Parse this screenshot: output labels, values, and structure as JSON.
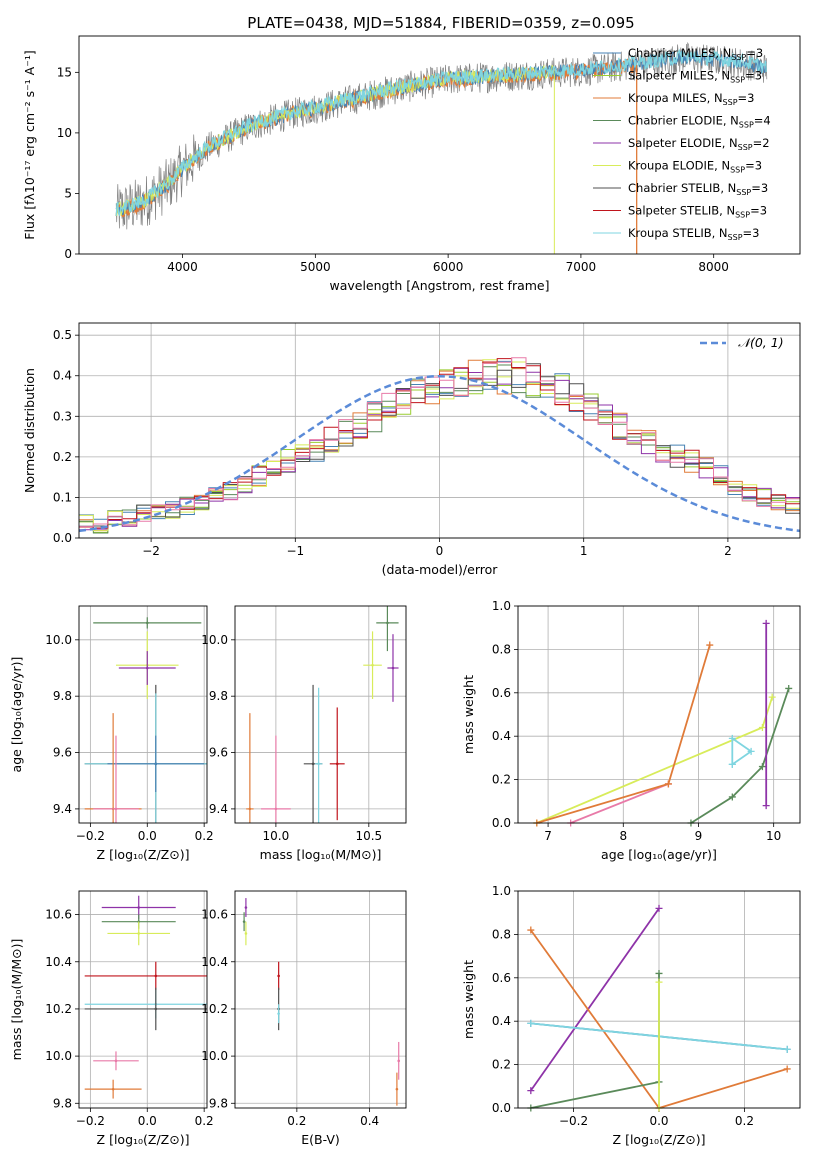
{
  "title": "PLATE=0438, MJD=51884, FIBERID=0359, z=0.095",
  "colors": {
    "chabrier_miles": "#4682b4",
    "salpeter_miles": "#9acd32",
    "kroupa_miles": "#e07b39",
    "chabrier_elodie": "#5a8a5a",
    "salpeter_elodie": "#8e33a8",
    "kroupa_elodie": "#d8ec5a",
    "chabrier_stelib": "#505050",
    "salpeter_stelib": "#c0141c",
    "kroupa_stelib": "#7fd5e0",
    "pink": "#e87aa8",
    "gray_data": "#808080",
    "normal": "#5b8bd8"
  },
  "chart_data": [
    {
      "id": "spectrum",
      "type": "line",
      "xlabel": "wavelength [Angstrom, rest frame]",
      "ylabel": "Flux [fλ10⁻¹⁷ erg cm⁻² s⁻¹ A⁻¹]",
      "xlim": [
        3220,
        8650
      ],
      "ylim": [
        0,
        18
      ],
      "xticks": [
        4000,
        5000,
        6000,
        7000,
        8000
      ],
      "yticks": [
        0,
        5,
        10,
        15
      ],
      "grid": false,
      "legend_position": "right",
      "legend": [
        {
          "label": "Chabrier MILES, N",
          "sub": "SSP",
          "suffix": "=3",
          "color_key": "chabrier_miles"
        },
        {
          "label": "Salpeter MILES, N",
          "sub": "SSP",
          "suffix": "=3",
          "color_key": "salpeter_miles"
        },
        {
          "label": "Kroupa MILES, N",
          "sub": "SSP",
          "suffix": "=3",
          "color_key": "kroupa_miles"
        },
        {
          "label": "Chabrier ELODIE, N",
          "sub": "SSP",
          "suffix": "=4",
          "color_key": "chabrier_elodie"
        },
        {
          "label": "Salpeter ELODIE, N",
          "sub": "SSP",
          "suffix": "=2",
          "color_key": "salpeter_elodie"
        },
        {
          "label": "Kroupa ELODIE, N",
          "sub": "SSP",
          "suffix": "=3",
          "color_key": "kroupa_elodie"
        },
        {
          "label": "Chabrier STELIB, N",
          "sub": "SSP",
          "suffix": "=3",
          "color_key": "chabrier_stelib"
        },
        {
          "label": "Salpeter STELIB, N",
          "sub": "SSP",
          "suffix": "=3",
          "color_key": "salpeter_stelib"
        },
        {
          "label": "Kroupa STELIB, N",
          "sub": "SSP",
          "suffix": "=3",
          "color_key": "kroupa_stelib"
        }
      ],
      "continuum": [
        [
          3500,
          3.5
        ],
        [
          3700,
          4.2
        ],
        [
          3900,
          5.8
        ],
        [
          4000,
          7.0
        ],
        [
          4200,
          8.8
        ],
        [
          4500,
          10.5
        ],
        [
          4800,
          11.5
        ],
        [
          5000,
          12.0
        ],
        [
          5300,
          12.8
        ],
        [
          5600,
          13.6
        ],
        [
          6000,
          14.4
        ],
        [
          6300,
          14.6
        ],
        [
          6600,
          14.8
        ],
        [
          7000,
          15.1
        ],
        [
          7400,
          15.6
        ],
        [
          7800,
          16.2
        ],
        [
          8200,
          15.8
        ],
        [
          8400,
          15.3
        ]
      ]
    },
    {
      "id": "residuals",
      "type": "step",
      "xlabel": "(data-model)/error",
      "ylabel": "Normed distribution",
      "xlim": [
        -2.5,
        2.5
      ],
      "ylim": [
        0,
        0.53
      ],
      "xticks": [
        -2,
        -1,
        0,
        1,
        2
      ],
      "xticklabels": [
        "−2",
        "−1",
        "0",
        "1",
        "2"
      ],
      "yticks": [
        0.0,
        0.1,
        0.2,
        0.3,
        0.4,
        0.5
      ],
      "grid": true,
      "legend_position": "top-right",
      "normal_label": "𝒩(0, 1)",
      "bin_width": 0.1,
      "bin_start": -2.5,
      "base_values": [
        0.04,
        0.03,
        0.05,
        0.05,
        0.06,
        0.06,
        0.07,
        0.08,
        0.09,
        0.1,
        0.12,
        0.13,
        0.15,
        0.17,
        0.19,
        0.2,
        0.22,
        0.24,
        0.26,
        0.28,
        0.3,
        0.32,
        0.33,
        0.35,
        0.37,
        0.38,
        0.39,
        0.4,
        0.41,
        0.4,
        0.4,
        0.39,
        0.38,
        0.37,
        0.35,
        0.32,
        0.3,
        0.28,
        0.26,
        0.24,
        0.22,
        0.2,
        0.19,
        0.17,
        0.15,
        0.13,
        0.11,
        0.1,
        0.09,
        0.08,
        0.07,
        0.06,
        0.06,
        0.05,
        0.05,
        0.04,
        0.04,
        0.03,
        0.03,
        0.03
      ]
    },
    {
      "id": "age_vs_Z",
      "type": "errorbar",
      "xlabel": "Z [log₁₀(Z/Z⊙)]",
      "ylabel": "age  [log₁₀(age/yr)]",
      "xlim": [
        -0.24,
        0.21
      ],
      "ylim": [
        9.35,
        10.12
      ],
      "xticks": [
        -0.2,
        0.0,
        0.2
      ],
      "xticklabels": [
        "−0.2",
        "0.0",
        "0.2"
      ],
      "yticks": [
        9.4,
        9.6,
        9.8,
        10.0
      ],
      "grid": true,
      "points": [
        {
          "c": "chabrier_elodie",
          "x": 0.0,
          "y": 10.06,
          "xe": 0.19,
          "ye": 0.02
        },
        {
          "c": "kroupa_elodie",
          "x": 0.0,
          "y": 9.91,
          "xe": 0.11,
          "ye": 0.12
        },
        {
          "c": "salpeter_elodie",
          "x": 0.0,
          "y": 9.9,
          "xe": 0.1,
          "ye": 0.06
        },
        {
          "c": "chabrier_stelib",
          "x": 0.03,
          "y": 9.56,
          "xe": 0.25,
          "ye": 0.28
        },
        {
          "c": "kroupa_stelib",
          "x": 0.03,
          "y": 9.56,
          "xe": 0.25,
          "ye": 0.25
        },
        {
          "c": "chabrier_miles",
          "x": 0.03,
          "y": 9.56,
          "xe": 0.17,
          "ye": 0.1
        },
        {
          "c": "kroupa_miles",
          "x": -0.12,
          "y": 9.4,
          "xe": 0.1,
          "ye": 0.34
        },
        {
          "c": "pink",
          "x": -0.11,
          "y": 9.4,
          "xe": 0.08,
          "ye": 0.26
        }
      ]
    },
    {
      "id": "age_vs_mass",
      "type": "errorbar",
      "xlabel": "mass [log₁₀(M/M⊙)]",
      "xlim": [
        9.78,
        10.7
      ],
      "ylim": [
        9.35,
        10.12
      ],
      "xticks": [
        10.0,
        10.5
      ],
      "xticklabels": [
        "10.0",
        "10.5"
      ],
      "yticks": [
        9.4,
        9.6,
        9.8,
        10.0
      ],
      "grid": true,
      "points": [
        {
          "c": "chabrier_elodie",
          "x": 10.6,
          "y": 10.06,
          "xe": 0.06,
          "ye": 0.1
        },
        {
          "c": "kroupa_elodie",
          "x": 10.52,
          "y": 9.91,
          "xe": 0.05,
          "ye": 0.12
        },
        {
          "c": "salpeter_elodie",
          "x": 10.63,
          "y": 9.9,
          "xe": 0.03,
          "ye": 0.12
        },
        {
          "c": "chabrier_stelib",
          "x": 10.2,
          "y": 9.56,
          "xe": 0.05,
          "ye": 0.28
        },
        {
          "c": "kroupa_stelib",
          "x": 10.23,
          "y": 9.56,
          "xe": 0.02,
          "ye": 0.27
        },
        {
          "c": "salpeter_stelib",
          "x": 10.33,
          "y": 9.56,
          "xe": 0.04,
          "ye": 0.2
        },
        {
          "c": "kroupa_miles",
          "x": 9.86,
          "y": 9.4,
          "xe": 0.02,
          "ye": 0.34
        },
        {
          "c": "pink",
          "x": 10.0,
          "y": 9.4,
          "xe": 0.08,
          "ye": 0.26
        }
      ]
    },
    {
      "id": "massweight_vs_age",
      "type": "line",
      "xlabel": "age  [log₁₀(age/yr)]",
      "ylabel": "mass weight",
      "xlim": [
        6.6,
        10.35
      ],
      "ylim": [
        0,
        1
      ],
      "xticks": [
        7,
        8,
        9,
        10
      ],
      "yticks": [
        0.0,
        0.2,
        0.4,
        0.6,
        0.8,
        1.0
      ],
      "grid": true,
      "series": [
        {
          "c": "chabrier_elodie",
          "pts": [
            [
              8.9,
              0.0
            ],
            [
              9.45,
              0.12
            ],
            [
              9.85,
              0.26
            ],
            [
              10.2,
              0.62
            ]
          ]
        },
        {
          "c": "kroupa_elodie",
          "pts": [
            [
              6.85,
              0.0
            ],
            [
              9.85,
              0.44
            ],
            [
              9.98,
              0.58
            ]
          ]
        },
        {
          "c": "pink",
          "pts": [
            [
              7.3,
              0.0
            ],
            [
              8.6,
              0.18
            ]
          ]
        },
        {
          "c": "kroupa_miles",
          "pts": [
            [
              6.85,
              0.0
            ],
            [
              8.6,
              0.18
            ],
            [
              9.15,
              0.82
            ]
          ]
        },
        {
          "c": "salpeter_elodie",
          "pts": [
            [
              9.9,
              0.08
            ],
            [
              9.9,
              0.92
            ]
          ]
        },
        {
          "c": "kroupa_stelib",
          "pts": [
            [
              9.45,
              0.27
            ],
            [
              9.45,
              0.39
            ],
            [
              9.7,
              0.33
            ],
            [
              9.45,
              0.27
            ]
          ]
        }
      ]
    },
    {
      "id": "mass_vs_Z",
      "type": "errorbar",
      "xlabel": "Z [log₁₀(Z/Z⊙)]",
      "ylabel": "mass [log₁₀(M/M⊙)]",
      "xlim": [
        -0.24,
        0.21
      ],
      "ylim": [
        9.78,
        10.7
      ],
      "xticks": [
        -0.2,
        0.0,
        0.2
      ],
      "xticklabels": [
        "−0.2",
        "0.0",
        "0.2"
      ],
      "yticks": [
        9.8,
        10.0,
        10.2,
        10.4,
        10.6
      ],
      "grid": true,
      "points": [
        {
          "c": "salpeter_elodie",
          "x": -0.03,
          "y": 10.63,
          "xe": 0.13,
          "ye": 0.05
        },
        {
          "c": "chabrier_elodie",
          "x": -0.03,
          "y": 10.57,
          "xe": 0.13,
          "ye": 0.03
        },
        {
          "c": "kroupa_elodie",
          "x": -0.03,
          "y": 10.52,
          "xe": 0.11,
          "ye": 0.05
        },
        {
          "c": "salpeter_stelib",
          "x": 0.03,
          "y": 10.34,
          "xe": 0.25,
          "ye": 0.06
        },
        {
          "c": "kroupa_stelib",
          "x": 0.03,
          "y": 10.22,
          "xe": 0.25,
          "ye": 0.06
        },
        {
          "c": "chabrier_stelib",
          "x": 0.03,
          "y": 10.2,
          "xe": 0.25,
          "ye": 0.09
        },
        {
          "c": "pink",
          "x": -0.11,
          "y": 9.98,
          "xe": 0.08,
          "ye": 0.04
        },
        {
          "c": "kroupa_miles",
          "x": -0.12,
          "y": 9.86,
          "xe": 0.1,
          "ye": 0.04
        }
      ]
    },
    {
      "id": "mass_vs_ebv",
      "type": "errorbar",
      "xlabel": "E(B-V)",
      "xlim": [
        0.03,
        0.5
      ],
      "ylim": [
        9.78,
        10.7
      ],
      "xticks": [
        0.2,
        0.4
      ],
      "xticklabels": [
        "0.2",
        "0.4"
      ],
      "yticks": [
        9.8,
        10.0,
        10.2,
        10.4,
        10.6
      ],
      "grid": true,
      "points": [
        {
          "c": "salpeter_elodie",
          "x": 0.06,
          "y": 10.63,
          "xe": 0.0,
          "ye": 0.04
        },
        {
          "c": "chabrier_elodie",
          "x": 0.055,
          "y": 10.57,
          "xe": 0.0,
          "ye": 0.04
        },
        {
          "c": "kroupa_elodie",
          "x": 0.06,
          "y": 10.52,
          "xe": 0.0,
          "ye": 0.05
        },
        {
          "c": "salpeter_stelib",
          "x": 0.15,
          "y": 10.34,
          "xe": 0.0,
          "ye": 0.06
        },
        {
          "c": "chabrier_stelib",
          "x": 0.15,
          "y": 10.2,
          "xe": 0.0,
          "ye": 0.09
        },
        {
          "c": "kroupa_stelib",
          "x": 0.15,
          "y": 10.18,
          "xe": 0.0,
          "ye": 0.04
        },
        {
          "c": "pink",
          "x": 0.48,
          "y": 9.98,
          "xe": 0.0,
          "ye": 0.08
        },
        {
          "c": "kroupa_miles",
          "x": 0.475,
          "y": 9.86,
          "xe": 0.0,
          "ye": 0.07
        }
      ]
    },
    {
      "id": "massweight_vs_Z",
      "type": "line",
      "xlabel": "Z [log₁₀(Z/Z⊙)]",
      "ylabel": "mass weight",
      "xlim": [
        -0.33,
        0.33
      ],
      "ylim": [
        0,
        1
      ],
      "xticks": [
        -0.2,
        0.0,
        0.2
      ],
      "xticklabels": [
        "−0.2",
        "0.0",
        "0.2"
      ],
      "yticks": [
        0.0,
        0.2,
        0.4,
        0.6,
        0.8,
        1.0
      ],
      "grid": true,
      "series": [
        {
          "c": "salpeter_elodie",
          "pts": [
            [
              -0.3,
              0.08
            ],
            [
              0.0,
              0.92
            ]
          ]
        },
        {
          "c": "kroupa_miles",
          "pts": [
            [
              -0.3,
              0.82
            ],
            [
              0.0,
              0.0
            ],
            [
              0.3,
              0.18
            ]
          ]
        },
        {
          "c": "chabrier_miles",
          "pts": [
            [
              -0.3,
              0.39
            ],
            [
              0.3,
              0.27
            ]
          ]
        },
        {
          "c": "kroupa_stelib",
          "pts": [
            [
              -0.3,
              0.39
            ],
            [
              0.3,
              0.27
            ]
          ]
        },
        {
          "c": "chabrier_elodie",
          "pts": [
            [
              -0.3,
              0.0
            ],
            [
              0.0,
              0.12
            ],
            [
              0.0,
              0.62
            ]
          ]
        },
        {
          "c": "kroupa_elodie",
          "pts": [
            [
              0.0,
              0.0
            ],
            [
              0.0,
              0.58
            ]
          ]
        }
      ]
    }
  ]
}
